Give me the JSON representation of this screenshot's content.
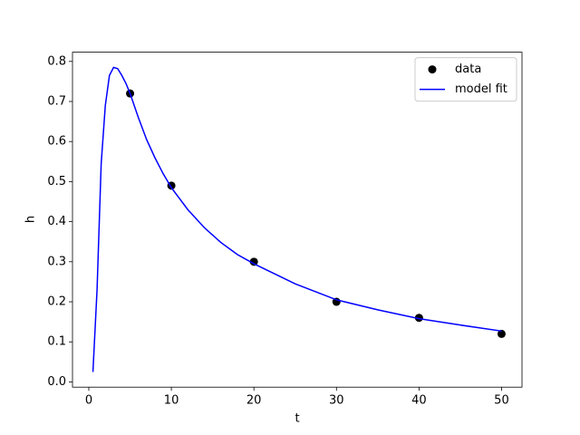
{
  "chart_data": {
    "type": "scatter",
    "x_label": "t",
    "y_label": "h",
    "xlim": [
      -1.975,
      52.475
    ],
    "ylim": [
      -0.013,
      0.823
    ],
    "xticks": [
      0,
      10,
      20,
      30,
      40,
      50
    ],
    "yticks": [
      {
        "value": 0,
        "label": "0.0"
      },
      0.1,
      0.2,
      0.3,
      0.4,
      0.5,
      0.6,
      0.7,
      0.8
    ],
    "legend": "upper right",
    "grid": false,
    "series": [
      {
        "name": "data",
        "style": "points",
        "color": "#000000",
        "x": [
          5,
          10,
          20,
          30,
          40,
          50
        ],
        "values": [
          0.72,
          0.49,
          0.3,
          0.2,
          0.16,
          0.12
        ]
      },
      {
        "name": "model fit",
        "style": "line",
        "color": "#0000ff",
        "x": [
          0.5,
          1,
          1.5,
          2,
          2.5,
          3,
          3.5,
          4,
          4.5,
          5,
          6,
          7,
          8,
          9,
          10,
          12,
          14,
          16,
          18,
          20,
          25,
          30,
          35,
          40,
          45,
          50
        ],
        "values": [
          0.025,
          0.23,
          0.545,
          0.69,
          0.765,
          0.785,
          0.782,
          0.765,
          0.745,
          0.72,
          0.66,
          0.605,
          0.56,
          0.52,
          0.485,
          0.43,
          0.385,
          0.348,
          0.318,
          0.295,
          0.245,
          0.205,
          0.18,
          0.158,
          0.142,
          0.127
        ]
      }
    ]
  }
}
